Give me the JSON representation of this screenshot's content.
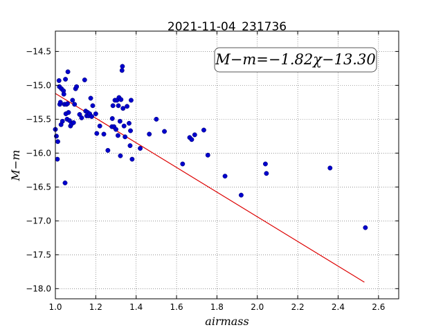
{
  "chart_data": {
    "type": "scatter",
    "title": "2021-11-04_231736",
    "xlabel": "airmass",
    "ylabel": "M−m",
    "xlim": [
      1.0,
      2.7
    ],
    "ylim": [
      -18.15,
      -14.2
    ],
    "y_inverted": true,
    "grid": true,
    "xticks": [
      1.0,
      1.2,
      1.4,
      1.6,
      1.8,
      2.0,
      2.2,
      2.4,
      2.6
    ],
    "xtick_labels": [
      "1.0",
      "1.2",
      "1.4",
      "1.6",
      "1.8",
      "2.0",
      "2.2",
      "2.4",
      "2.6"
    ],
    "yticks": [
      -14.5,
      -15.0,
      -15.5,
      -16.0,
      -16.5,
      -17.0,
      -17.5,
      -18.0
    ],
    "ytick_labels": [
      "−14.5",
      "−15.0",
      "−15.5",
      "−16.0",
      "−16.5",
      "−17.0",
      "−17.5",
      "−18.0"
    ],
    "annotation": "M−m=−1.82χ−13.30",
    "colors": {
      "points": "#0000cc",
      "fit": "#dd0000"
    },
    "fit_line": {
      "slope": -1.82,
      "intercept": -13.3,
      "x_range": [
        1.0,
        2.53
      ]
    },
    "points": [
      [
        1.0,
        -15.65
      ],
      [
        1.005,
        -15.75
      ],
      [
        1.01,
        -16.09
      ],
      [
        1.012,
        -15.83
      ],
      [
        1.018,
        -14.93
      ],
      [
        1.02,
        -15.02
      ],
      [
        1.022,
        -15.28
      ],
      [
        1.025,
        -15.25
      ],
      [
        1.028,
        -15.58
      ],
      [
        1.03,
        -15.05
      ],
      [
        1.035,
        -15.53
      ],
      [
        1.04,
        -15.08
      ],
      [
        1.042,
        -15.13
      ],
      [
        1.045,
        -15.28
      ],
      [
        1.048,
        -16.44
      ],
      [
        1.05,
        -14.91
      ],
      [
        1.052,
        -15.42
      ],
      [
        1.055,
        -15.28
      ],
      [
        1.058,
        -15.5
      ],
      [
        1.06,
        -15.27
      ],
      [
        1.062,
        -14.8
      ],
      [
        1.065,
        -15.4
      ],
      [
        1.07,
        -15.52
      ],
      [
        1.075,
        -15.6
      ],
      [
        1.08,
        -15.57
      ],
      [
        1.085,
        -15.22
      ],
      [
        1.09,
        -15.55
      ],
      [
        1.095,
        -15.28
      ],
      [
        1.1,
        -15.05
      ],
      [
        1.105,
        -15.02
      ],
      [
        1.12,
        -15.43
      ],
      [
        1.13,
        -15.48
      ],
      [
        1.145,
        -14.92
      ],
      [
        1.15,
        -15.38
      ],
      [
        1.155,
        -15.45
      ],
      [
        1.16,
        -15.4
      ],
      [
        1.165,
        -15.45
      ],
      [
        1.17,
        -15.42
      ],
      [
        1.175,
        -15.19
      ],
      [
        1.18,
        -15.46
      ],
      [
        1.185,
        -15.3
      ],
      [
        1.2,
        -15.42
      ],
      [
        1.205,
        -15.71
      ],
      [
        1.22,
        -15.6
      ],
      [
        1.24,
        -15.72
      ],
      [
        1.26,
        -15.96
      ],
      [
        1.28,
        -15.61
      ],
      [
        1.282,
        -15.49
      ],
      [
        1.285,
        -15.3
      ],
      [
        1.29,
        -15.61
      ],
      [
        1.295,
        -15.22
      ],
      [
        1.3,
        -15.65
      ],
      [
        1.305,
        -15.22
      ],
      [
        1.31,
        -15.74
      ],
      [
        1.312,
        -15.3
      ],
      [
        1.315,
        -15.18
      ],
      [
        1.32,
        -15.53
      ],
      [
        1.322,
        -16.04
      ],
      [
        1.325,
        -15.21
      ],
      [
        1.33,
        -14.78
      ],
      [
        1.332,
        -14.72
      ],
      [
        1.335,
        -15.34
      ],
      [
        1.34,
        -15.6
      ],
      [
        1.345,
        -15.76
      ],
      [
        1.355,
        -15.31
      ],
      [
        1.365,
        -15.56
      ],
      [
        1.37,
        -15.89
      ],
      [
        1.372,
        -15.67
      ],
      [
        1.375,
        -15.22
      ],
      [
        1.38,
        -16.09
      ],
      [
        1.42,
        -15.93
      ],
      [
        1.465,
        -15.72
      ],
      [
        1.5,
        -15.5
      ],
      [
        1.54,
        -15.68
      ],
      [
        1.63,
        -16.16
      ],
      [
        1.665,
        -15.77
      ],
      [
        1.675,
        -15.8
      ],
      [
        1.69,
        -15.73
      ],
      [
        1.735,
        -15.66
      ],
      [
        1.755,
        -16.03
      ],
      [
        1.84,
        -16.34
      ],
      [
        1.92,
        -16.62
      ],
      [
        2.04,
        -16.16
      ],
      [
        2.045,
        -16.3
      ],
      [
        2.36,
        -16.22
      ],
      [
        2.535,
        -17.1
      ]
    ]
  }
}
